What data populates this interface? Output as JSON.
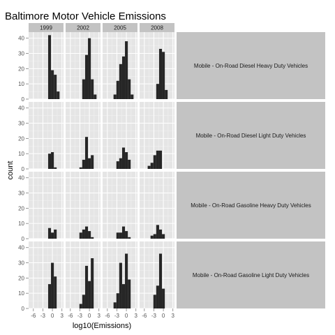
{
  "chart_data": {
    "type": "bar",
    "subtype": "faceted-histogram",
    "title": "Baltimore Motor Vehicle Emissions",
    "xlabel": "log10(Emissions)",
    "ylabel": "count",
    "x_ticks": [
      -6,
      -3,
      0,
      3
    ],
    "y_ticks": [
      0,
      10,
      20,
      30,
      40
    ],
    "xlim": [
      -7.5,
      3.5
    ],
    "ylim": [
      0,
      44
    ],
    "grid": true,
    "legend": "none",
    "bin_width": 0.9,
    "facet_columns": [
      "1999",
      "2002",
      "2005",
      "2008"
    ],
    "facet_rows": [
      "Mobile - On-Road Diesel Heavy Duty Vehicles",
      "Mobile - On-Road Diesel Light Duty Vehicles",
      "Mobile - On-Road Gasoline Heavy Duty Vehicles",
      "Mobile - On-Road Gasoline Light Duty Vehicles"
    ],
    "panels": [
      [
        {
          "bin_start": [
            -1.35,
            -0.45,
            0.45,
            1.35
          ],
          "counts": [
            42,
            19,
            16,
            5
          ]
        },
        {
          "bin_start": [
            -2.25,
            -1.35,
            -0.45,
            0.45,
            1.35
          ],
          "counts": [
            13,
            29,
            40,
            13,
            3
          ]
        },
        {
          "bin_start": [
            -4.05,
            -3.15,
            -2.25,
            -1.35,
            -0.45,
            0.45,
            1.35
          ],
          "counts": [
            3,
            12,
            23,
            28,
            38,
            13,
            3
          ]
        },
        {
          "bin_start": [
            -2.25,
            -1.35,
            -0.45,
            0.45
          ],
          "counts": [
            10,
            33,
            31,
            6
          ]
        }
      ],
      [
        {
          "bin_start": [
            -1.35,
            -0.45,
            0.45
          ],
          "counts": [
            10,
            11,
            1
          ]
        },
        {
          "bin_start": [
            -3.15,
            -2.25,
            -1.35,
            -0.45,
            0.45
          ],
          "counts": [
            1,
            6,
            21,
            7,
            9
          ]
        },
        {
          "bin_start": [
            -3.15,
            -2.25,
            -1.35,
            -0.45,
            0.45
          ],
          "counts": [
            5,
            7,
            14,
            11,
            6
          ]
        },
        {
          "bin_start": [
            -4.95,
            -4.05,
            -3.15,
            -2.25,
            -1.35
          ],
          "counts": [
            2,
            4,
            9,
            12,
            12
          ]
        }
      ],
      [
        {
          "bin_start": [
            -1.35,
            -0.45,
            0.45
          ],
          "counts": [
            7,
            4,
            6
          ]
        },
        {
          "bin_start": [
            -3.15,
            -2.25,
            -1.35,
            -0.45,
            0.45
          ],
          "counts": [
            4,
            6,
            8,
            5,
            1
          ]
        },
        {
          "bin_start": [
            -3.15,
            -2.25,
            -1.35,
            -0.45,
            0.45
          ],
          "counts": [
            4,
            4,
            8,
            5,
            1
          ]
        },
        {
          "bin_start": [
            -4.05,
            -3.15,
            -2.25,
            -1.35,
            -0.45
          ],
          "counts": [
            2,
            3,
            9,
            6,
            3
          ]
        }
      ],
      [
        {
          "bin_start": [
            -1.35,
            -0.45,
            0.45
          ],
          "counts": [
            16,
            30,
            21
          ]
        },
        {
          "bin_start": [
            -3.15,
            -2.25,
            -1.35,
            -0.45,
            0.45
          ],
          "counts": [
            3,
            9,
            28,
            18,
            33
          ]
        },
        {
          "bin_start": [
            -4.05,
            -3.15,
            -2.25,
            -1.35,
            -0.45,
            0.45
          ],
          "counts": [
            4,
            10,
            30,
            16,
            36,
            19
          ]
        },
        {
          "bin_start": [
            -3.15,
            -2.25,
            -1.35,
            -0.45
          ],
          "counts": [
            9,
            15,
            36,
            13
          ]
        }
      ]
    ]
  }
}
